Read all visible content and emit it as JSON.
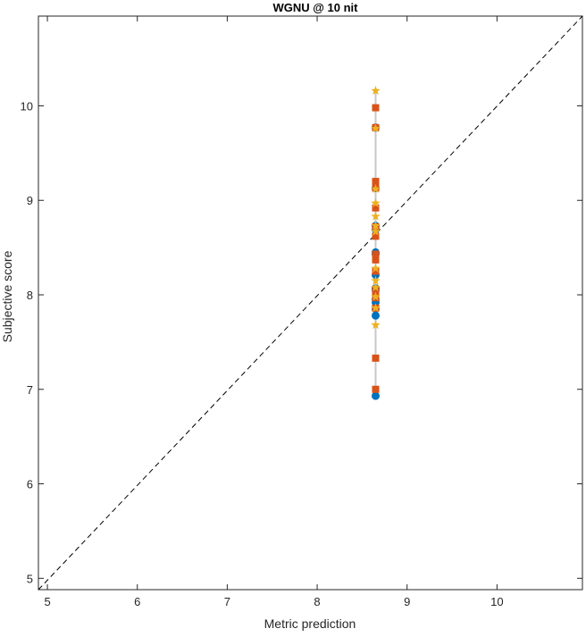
{
  "chart_data": {
    "type": "scatter",
    "title": "WGNU @ 10 nit",
    "xlabel": "Metric prediction",
    "ylabel": "Subjective score",
    "xlim": [
      4.9,
      10.95
    ],
    "ylim": [
      4.88,
      10.95
    ],
    "xticks": [
      5,
      6,
      7,
      8,
      9,
      10
    ],
    "yticks": [
      5,
      6,
      7,
      8,
      9,
      10
    ],
    "xtick_labels": [
      "5",
      "6",
      "7",
      "8",
      "9",
      "10"
    ],
    "ytick_labels": [
      "5",
      "6",
      "7",
      "8",
      "9",
      "10"
    ],
    "grid": false,
    "reference_line": {
      "style": "dashed",
      "color": "#000000",
      "from": [
        4.9,
        4.88
      ],
      "to": [
        10.95,
        10.95
      ]
    },
    "error_bar": {
      "x": 8.65,
      "y_low": 6.93,
      "y_high": 10.16,
      "color": "#c8c8c8"
    },
    "colors": {
      "circle": "#0072bd",
      "square": "#d95319",
      "star": "#edb120",
      "error": "#c8c8c8",
      "axis": "#262626"
    },
    "series": [
      {
        "marker": "circle",
        "x": [
          8.65,
          8.65,
          8.65,
          8.65,
          8.65,
          8.65,
          8.65,
          8.65,
          8.65,
          8.65,
          8.65,
          8.65,
          8.65,
          8.65
        ],
        "y": [
          9.77,
          9.13,
          8.73,
          8.69,
          8.45,
          8.43,
          8.21,
          8.05,
          7.95,
          7.92,
          7.85,
          7.78,
          6.93,
          8.07
        ]
      },
      {
        "marker": "square",
        "x": [
          8.65,
          8.65,
          8.65,
          8.65,
          8.65,
          8.65,
          8.65,
          8.65,
          8.65,
          8.65,
          8.65,
          8.65,
          8.65,
          8.65,
          8.65,
          8.65
        ],
        "y": [
          9.98,
          9.77,
          9.2,
          9.13,
          8.92,
          8.72,
          8.62,
          8.43,
          8.37,
          8.25,
          8.05,
          8.0,
          7.97,
          7.86,
          7.33,
          7.0
        ]
      },
      {
        "marker": "star",
        "x": [
          8.65,
          8.65,
          8.65,
          8.65,
          8.65,
          8.65,
          8.65,
          8.65,
          8.65,
          8.65,
          8.65,
          8.65,
          8.65
        ],
        "y": [
          10.16,
          9.76,
          9.12,
          8.97,
          8.83,
          8.73,
          8.67,
          8.28,
          8.15,
          8.08,
          7.98,
          7.86,
          7.68
        ]
      }
    ]
  }
}
